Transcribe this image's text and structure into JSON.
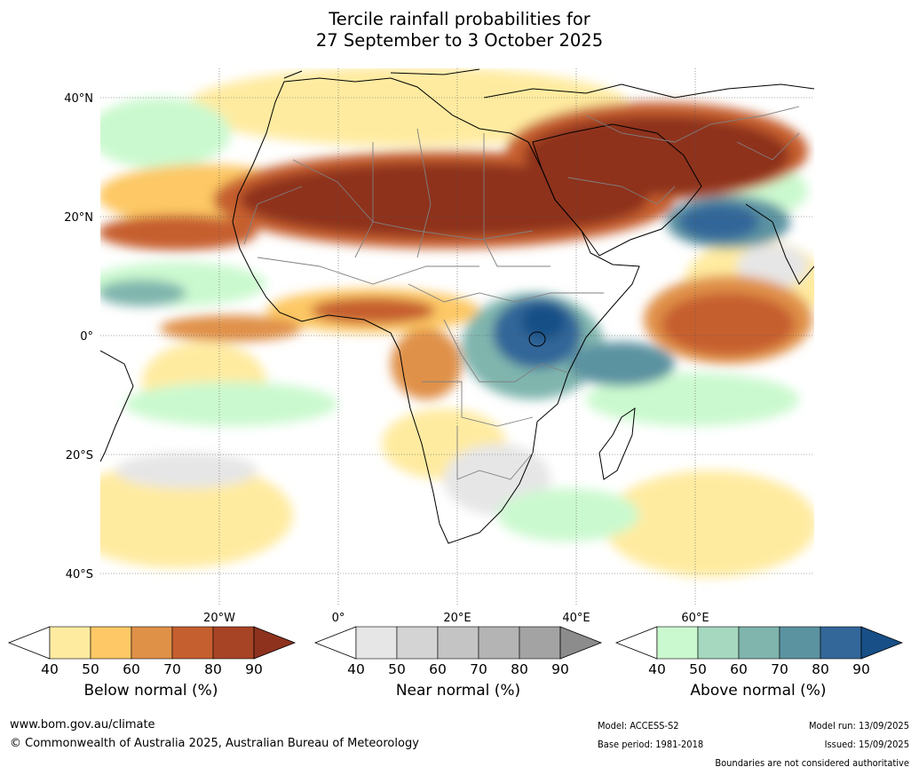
{
  "title": {
    "line1": "Tercile rainfall probabilities for",
    "line2": "27 September to 3 October 2025"
  },
  "map": {
    "lat_labels": [
      "40°N",
      "20°N",
      "0°",
      "20°S",
      "40°S"
    ],
    "lon_labels": [
      "20°W",
      "0°",
      "20°E",
      "40°E",
      "60°E"
    ],
    "palette": {
      "below": [
        "#ffeba0",
        "#fdc865",
        "#e09148",
        "#c65f2f",
        "#a84426",
        "#8e321e"
      ],
      "near": [
        "#e6e6e6",
        "#d4d4d4",
        "#c4c4c4",
        "#b4b4b4",
        "#a3a3a3",
        "#8c8c8c"
      ],
      "above": [
        "#cbf9cf",
        "#a5d8bf",
        "#7fb5ad",
        "#5b93a1",
        "#336699",
        "#174f86"
      ],
      "coast": "#000000",
      "borders": "#808080"
    }
  },
  "colorbars": [
    {
      "label": "Below normal (%)",
      "ticks": [
        "40",
        "50",
        "60",
        "70",
        "80",
        "90"
      ],
      "colors": [
        "#ffeba0",
        "#fdc865",
        "#e09148",
        "#c65f2f",
        "#a84426",
        "#8e321e"
      ]
    },
    {
      "label": "Near normal (%)",
      "ticks": [
        "40",
        "50",
        "60",
        "70",
        "80",
        "90"
      ],
      "colors": [
        "#e6e6e6",
        "#d4d4d4",
        "#c4c4c4",
        "#b4b4b4",
        "#a3a3a3",
        "#8c8c8c"
      ]
    },
    {
      "label": "Above normal (%)",
      "ticks": [
        "40",
        "50",
        "60",
        "70",
        "80",
        "90"
      ],
      "colors": [
        "#cbf9cf",
        "#a5d8bf",
        "#7fb5ad",
        "#5b93a1",
        "#336699",
        "#174f86"
      ]
    }
  ],
  "footer": {
    "website": "www.bom.gov.au/climate",
    "copyright": "© Commonwealth of Australia 2025, Australian Bureau of Meteorology",
    "model": "Model: ACCESS-S2",
    "base_period": "Base period: 1981-2018",
    "model_run": "Model run: 13/09/2025",
    "issued": "Issued: 15/09/2025",
    "disclaimer": "Boundaries are not considered authoritative"
  }
}
